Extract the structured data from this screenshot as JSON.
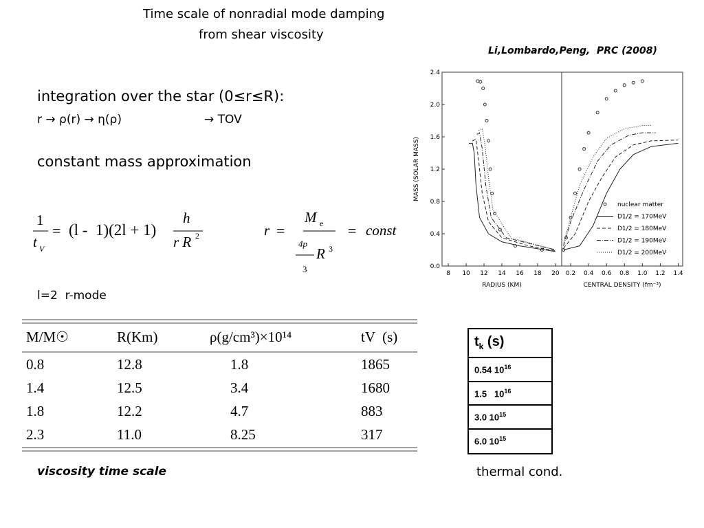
{
  "header": {
    "title_line1": "Time scale of nonradial mode damping",
    "title_line2": "from shear viscosity",
    "citation": "Li,Lombardo,Peng,  PRC (2008)"
  },
  "notes": {
    "integration": "integration over the star (0≤r≤R):",
    "chain": "r → ρ(r) → η(ρ)",
    "tov": "→ TOV",
    "approx": "constant mass approximation",
    "mode": "l=2  r-mode"
  },
  "formula1": {
    "lhs_num": "1",
    "lhs_den": "t",
    "lhs_den_sub": "V",
    "eq": "=",
    "factors": "(l -  1)(2l + 1)",
    "rhs_num": "h",
    "rhs_den": "r R",
    "rhs_den_sup": "2"
  },
  "formula2": {
    "lhs": "r",
    "eq1": "=",
    "num": "M",
    "num_sub": "e",
    "den_num": "4p",
    "den_den": "3",
    "den_var": "R",
    "den_sup": "3",
    "eq2": "=",
    "rhs": "const"
  },
  "table": {
    "header": [
      "M/M☉",
      "R(Km)",
      "ρ(g/cm³)×10¹⁴",
      "tV  (s)"
    ],
    "rows": [
      [
        "0.8",
        "12.8",
        "1.8",
        "1865"
      ],
      [
        "1.4",
        "12.5",
        "3.4",
        "1680"
      ],
      [
        "1.8",
        "12.2",
        "4.7",
        "883"
      ],
      [
        "2.3",
        "11.0",
        "8.25",
        "317"
      ]
    ],
    "caption": "viscosity time scale"
  },
  "thermal_table": {
    "header": {
      "t": "t",
      "sub": "k",
      "unit": " (s)"
    },
    "rows": [
      {
        "base": "0.54 10",
        "exp": "16"
      },
      {
        "base": "1.5   10",
        "exp": "16"
      },
      {
        "base": "3.0 10",
        "exp": "15"
      },
      {
        "base": "6.0 10",
        "exp": "15"
      }
    ],
    "caption": "thermal cond."
  },
  "chart_data": [
    {
      "type": "line",
      "x_label": "RADIUS (KM)",
      "y_label": "MASS (SOLAR MASS)",
      "xlim": [
        7.3,
        20.7
      ],
      "ylim": [
        0,
        2.4
      ],
      "xticks": [
        8,
        10,
        12,
        14,
        16,
        18,
        20
      ],
      "yticks": [
        {
          "value": 0,
          "label": "0.0"
        },
        0.4,
        0.8,
        1.2,
        1.6,
        {
          "value": 2,
          "label": "2.0"
        },
        2.4
      ],
      "series": [
        {
          "name": "nuclear matter",
          "color": "#333333",
          "style": "markers",
          "x": [
            11.3,
            11.6,
            11.9,
            12.1,
            12.3,
            12.5,
            12.7,
            12.9,
            13.2,
            13.8,
            15.5,
            18.5
          ],
          "values": [
            2.29,
            2.28,
            2.2,
            2.0,
            1.8,
            1.55,
            1.2,
            0.9,
            0.65,
            0.45,
            0.25,
            0.2
          ]
        },
        {
          "name": "D1/2 = 170MeV",
          "color": "#222222",
          "style": "solid",
          "x": [
            10.3,
            10.7,
            10.9,
            11.1,
            11.5,
            12.5,
            14,
            16,
            20
          ],
          "values": [
            1.52,
            1.52,
            1.4,
            1.0,
            0.6,
            0.4,
            0.3,
            0.25,
            0.18
          ]
        },
        {
          "name": "D1/2 = 180MeV",
          "color": "#222222",
          "style": "dashed",
          "x": [
            10.7,
            11.1,
            11.4,
            11.8,
            12.5,
            14,
            17,
            20
          ],
          "values": [
            1.55,
            1.57,
            1.3,
            0.9,
            0.55,
            0.35,
            0.25,
            0.19
          ]
        },
        {
          "name": "D1/2 = 190MeV",
          "color": "#222222",
          "style": "dashdot",
          "x": [
            11.2,
            11.5,
            11.8,
            12.2,
            12.8,
            14.5,
            20
          ],
          "values": [
            1.63,
            1.65,
            1.45,
            1.0,
            0.6,
            0.35,
            0.2
          ]
        },
        {
          "name": "D1/2 = 200MeV",
          "color": "#222222",
          "style": "dotted",
          "x": [
            11.4,
            11.8,
            12.1,
            12.5,
            13,
            15,
            20
          ],
          "values": [
            1.68,
            1.7,
            1.5,
            1.1,
            0.7,
            0.35,
            0.2
          ]
        }
      ]
    },
    {
      "type": "line",
      "x_label": "CENTRAL DENSITY (fm⁻³)",
      "xlim": [
        0.1,
        1.45
      ],
      "ylim": [
        0,
        2.4
      ],
      "xticks": [
        0.2,
        0.4,
        0.6,
        0.8,
        {
          "value": 1,
          "label": "1.0"
        },
        1.2,
        1.4
      ],
      "legend": "lower right",
      "series": [
        {
          "name": "nuclear matter",
          "color": "#333333",
          "style": "markers",
          "x": [
            0.12,
            0.15,
            0.2,
            0.25,
            0.3,
            0.35,
            0.4,
            0.5,
            0.6,
            0.7,
            0.8,
            0.9,
            1.0
          ],
          "values": [
            0.2,
            0.35,
            0.6,
            0.9,
            1.2,
            1.45,
            1.65,
            1.9,
            2.07,
            2.17,
            2.24,
            2.27,
            2.29
          ]
        },
        {
          "name": "D1/2 = 170MeV",
          "color": "#222222",
          "style": "solid",
          "x": [
            0.12,
            0.3,
            0.45,
            0.6,
            0.75,
            0.9,
            1.1,
            1.4
          ],
          "values": [
            0.2,
            0.25,
            0.5,
            0.9,
            1.2,
            1.38,
            1.48,
            1.52
          ]
        },
        {
          "name": "D1/2 = 180MeV",
          "color": "#222222",
          "style": "dashed",
          "x": [
            0.12,
            0.25,
            0.4,
            0.55,
            0.7,
            0.9,
            1.1,
            1.4
          ],
          "values": [
            0.22,
            0.4,
            0.8,
            1.1,
            1.35,
            1.5,
            1.55,
            1.56
          ]
        },
        {
          "name": "D1/2 = 190MeV",
          "color": "#222222",
          "style": "dashdot",
          "x": [
            0.12,
            0.2,
            0.35,
            0.5,
            0.65,
            0.85,
            1.0,
            1.15
          ],
          "values": [
            0.25,
            0.55,
            0.95,
            1.3,
            1.5,
            1.62,
            1.65,
            1.65
          ]
        },
        {
          "name": "D1/2 = 200MeV",
          "color": "#222222",
          "style": "dotted",
          "x": [
            0.12,
            0.2,
            0.3,
            0.45,
            0.6,
            0.8,
            1.0,
            1.1
          ],
          "values": [
            0.28,
            0.6,
            1.0,
            1.35,
            1.58,
            1.7,
            1.74,
            1.74
          ]
        }
      ]
    }
  ]
}
